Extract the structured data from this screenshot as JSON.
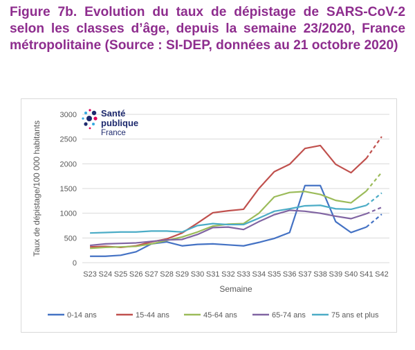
{
  "title": "Figure 7b. Evolution du taux de dépistage de SARS-CoV-2 selon les classes d’âge, depuis la semaine 23/2020, France métropolitaine (Source : SI-DEP, données au 21 octobre 2020)",
  "logo": {
    "line1": "Santé",
    "line2": "publique",
    "line3": "France"
  },
  "colors": {
    "title": "#8e2d8e",
    "grid": "#d9d9d9",
    "text": "#595959"
  },
  "chart_data": {
    "type": "line",
    "xlabel": "Semaine",
    "ylabel": "Taux de dépistage/100 000 habitants",
    "ylim": [
      0,
      3000
    ],
    "yticks": [
      0,
      500,
      1000,
      1500,
      2000,
      2500,
      3000
    ],
    "grid": true,
    "legend_position": "bottom",
    "x": [
      "S23",
      "S24",
      "S25",
      "S26",
      "S27",
      "S28",
      "S29",
      "S30",
      "S31",
      "S32",
      "S33",
      "S34",
      "S35",
      "S36",
      "S37",
      "S38",
      "S39",
      "S40",
      "S41",
      "S42"
    ],
    "dashed_last_segment": true,
    "series": [
      {
        "name": "0-14 ans",
        "color": "#4472c4",
        "values": [
          130,
          130,
          150,
          220,
          380,
          420,
          340,
          370,
          380,
          360,
          340,
          410,
          490,
          610,
          1560,
          1560,
          830,
          610,
          720,
          980
        ]
      },
      {
        "name": "15-44 ans",
        "color": "#c0504d",
        "values": [
          320,
          330,
          310,
          340,
          420,
          480,
          600,
          800,
          1010,
          1050,
          1080,
          1500,
          1840,
          1990,
          2310,
          2370,
          1990,
          1820,
          2110,
          2550
        ]
      },
      {
        "name": "45-64 ans",
        "color": "#9bbb59",
        "values": [
          290,
          310,
          320,
          330,
          380,
          450,
          520,
          620,
          740,
          780,
          790,
          1000,
          1330,
          1420,
          1440,
          1380,
          1260,
          1210,
          1450,
          1830
        ]
      },
      {
        "name": "65-74 ans",
        "color": "#8064a2",
        "values": [
          350,
          380,
          390,
          400,
          430,
          460,
          470,
          570,
          710,
          720,
          670,
          830,
          970,
          1060,
          1040,
          1000,
          940,
          890,
          990,
          1120
        ]
      },
      {
        "name": "75 ans et plus",
        "color": "#4bacc6",
        "values": [
          600,
          610,
          620,
          620,
          640,
          640,
          620,
          750,
          790,
          770,
          770,
          900,
          1040,
          1090,
          1150,
          1160,
          1090,
          1080,
          1160,
          1410
        ]
      }
    ]
  }
}
